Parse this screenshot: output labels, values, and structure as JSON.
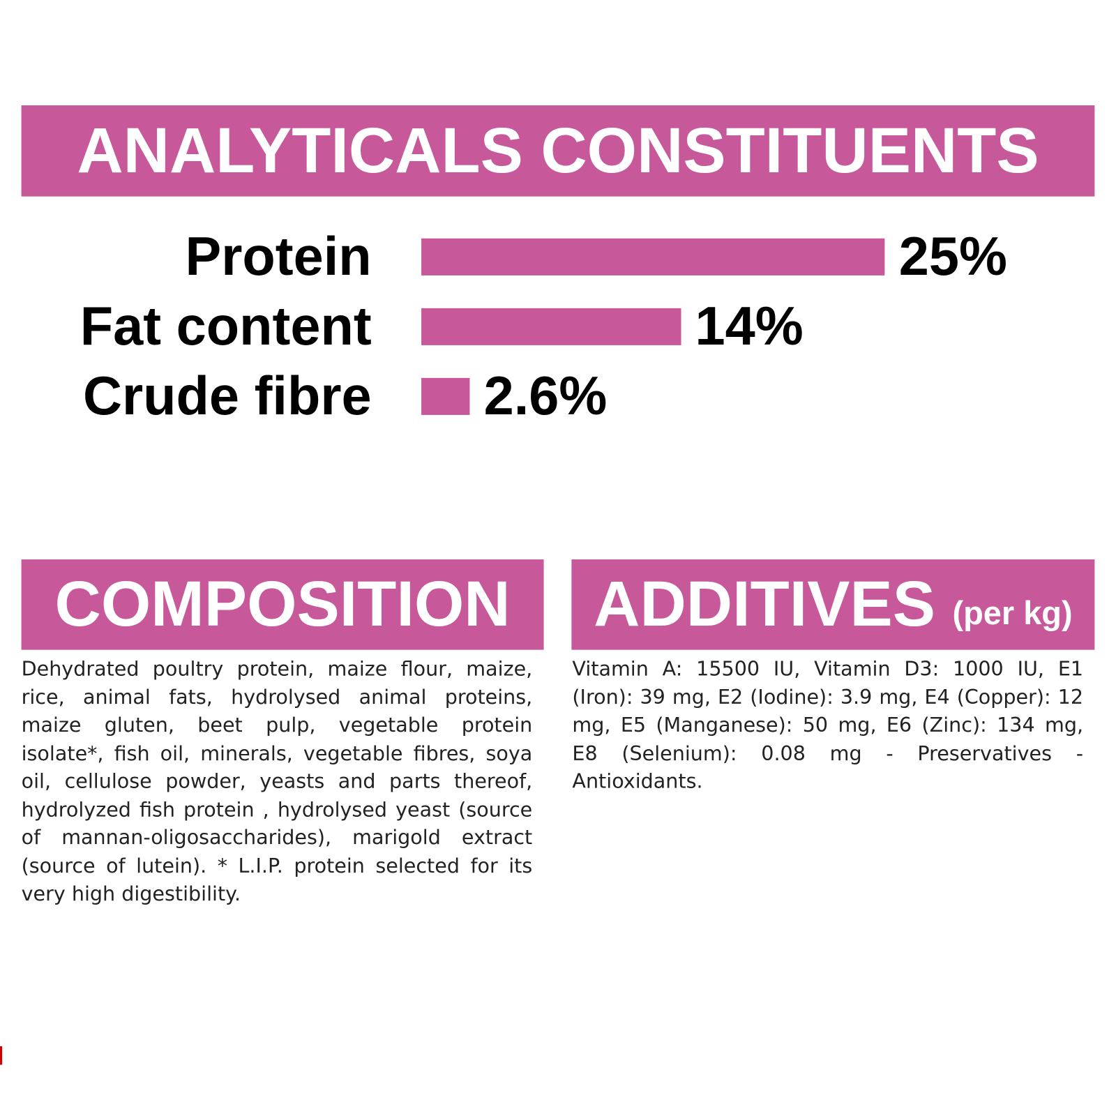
{
  "chart_data": {
    "type": "bar",
    "title": "ANALYTICALS CONSTITUENTS",
    "categories": [
      "Protein",
      "Fat content",
      "Crude fibre"
    ],
    "values": [
      25,
      14,
      2.6
    ],
    "value_labels": [
      "25%",
      "14%",
      "2.6%"
    ],
    "color": "#c75899"
  },
  "composition": {
    "title": "COMPOSITION",
    "text": "Dehydrated poultry protein, maize flour, maize, rice, animal fats, hydrolysed animal proteins, maize gluten, beet pulp, vegetable protein isolate*, fish oil, minerals, vegetable fibres, soya oil, cellulose powder, yeasts and parts thereof, hydrolyzed fish protein , hydrolysed yeast (source of mannan-oligosaccharides), marigold extract (source of lutein). * L.I.P. protein selected for its very high digestibility."
  },
  "additives": {
    "title": "ADDITIVES",
    "unit": "(per kg)",
    "text": "Vitamin A: 15500 IU, Vitamin D3: 1000 IU, E1 (Iron): 39 mg, E2 (Iodine): 3.9 mg, E4 (Copper): 12 mg, E5 (Manganese): 50 mg, E6 (Zinc): 134 mg, E8 (Selenium): 0.08 mg - Preservatives - Antioxidants."
  }
}
